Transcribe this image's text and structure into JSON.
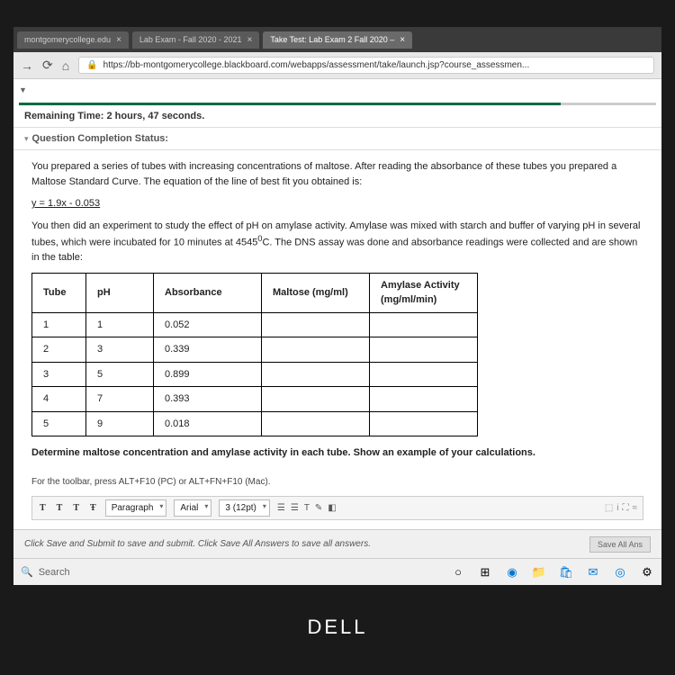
{
  "tabs": [
    {
      "label": "montgomerycollege.edu",
      "active": false
    },
    {
      "label": "Lab Exam - Fall 2020 - 2021",
      "active": false
    },
    {
      "label": "Take Test: Lab Exam 2 Fall 2020 –",
      "active": true
    }
  ],
  "url": "https://bb-montgomerycollege.blackboard.com/webapps/assessment/take/launch.jsp?course_assessmen...",
  "timer_label": "Remaining Time:",
  "timer_value": "2 hours, 47 seconds.",
  "status_label": "Question Completion Status:",
  "question": {
    "p1": "You prepared a series of tubes with increasing concentrations of maltose. After reading the absorbance of these tubes you prepared a Maltose Standard Curve. The equation of the line of best fit you obtained is:",
    "eq": "y = 1.9x - 0.053",
    "p2a": "You then did an experiment to study the effect of pH on amylase activity. Amylase was mixed with starch and buffer of varying pH in several tubes, which were incubated for 10 minutes at 45",
    "p2deg": "0",
    "p2b": "C. The DNS assay was done and absorbance readings were collected and are shown in the table:",
    "prompt": "Determine maltose concentration and amylase activity in each tube. Show an example of your calculations."
  },
  "table": {
    "headers": [
      "Tube",
      "pH",
      "Absorbance",
      "Maltose (mg/ml)",
      "Amylase Activity (mg/ml/min)"
    ],
    "rows": [
      [
        "1",
        "1",
        "0.052",
        "",
        ""
      ],
      [
        "2",
        "3",
        "0.339",
        "",
        ""
      ],
      [
        "3",
        "5",
        "0.899",
        "",
        ""
      ],
      [
        "4",
        "7",
        "0.393",
        "",
        ""
      ],
      [
        "5",
        "9",
        "0.018",
        "",
        ""
      ]
    ]
  },
  "toolbar_hint": "For the toolbar, press ALT+F10 (PC) or ALT+FN+F10 (Mac).",
  "editor": {
    "para": "Paragraph",
    "font": "Arial",
    "size": "3 (12pt)"
  },
  "save_text": "Click Save and Submit to save and submit. Click Save All Answers to save all answers.",
  "save_btn": "Save All Ans",
  "search_placeholder": "Search",
  "dell": "DELL"
}
